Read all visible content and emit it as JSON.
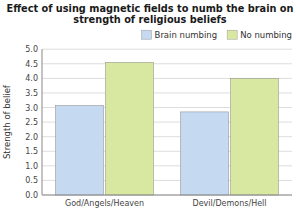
{
  "chart_data": {
    "type": "bar",
    "title": "Effect of using magnetic fields to numb the brain on\nstrength of religious beliefs",
    "y_label": "Strength of belief",
    "categories": [
      "God/Angels/Heaven",
      "Devil/Demons/Hell"
    ],
    "series": [
      {
        "name": "Brain numbing",
        "color": "#c5d9f1",
        "values": [
          3.07,
          2.85
        ]
      },
      {
        "name": "No numbing",
        "color": "#d8e8a0",
        "values": [
          4.55,
          4.0
        ]
      }
    ],
    "ylim": [
      0,
      5.0
    ],
    "yticks": [
      {
        "value": 0,
        "label": "0.0"
      },
      0.5,
      {
        "value": 1,
        "label": "1.0"
      },
      1.5,
      {
        "value": 2,
        "label": "2.0"
      },
      2.5,
      {
        "value": 3,
        "label": "3.0"
      },
      3.5,
      {
        "value": 4,
        "label": "4.0"
      },
      4.5,
      {
        "value": 5,
        "label": "5.0"
      }
    ],
    "grid": true,
    "legend": "upper right"
  }
}
